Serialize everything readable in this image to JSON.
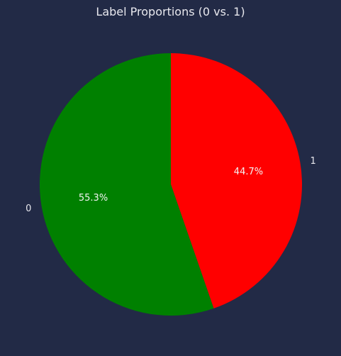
{
  "chart_data": {
    "type": "pie",
    "title": "Label Proportions (0 vs. 1)",
    "categories": [
      "1",
      "0"
    ],
    "values": [
      44.7,
      55.3
    ],
    "percent_labels": [
      "44.7%",
      "55.3%"
    ],
    "colors": [
      "#ff0000",
      "#008000"
    ],
    "start_angle": "top (12 o'clock)",
    "direction": "clockwise"
  },
  "background_color": "#222a46"
}
